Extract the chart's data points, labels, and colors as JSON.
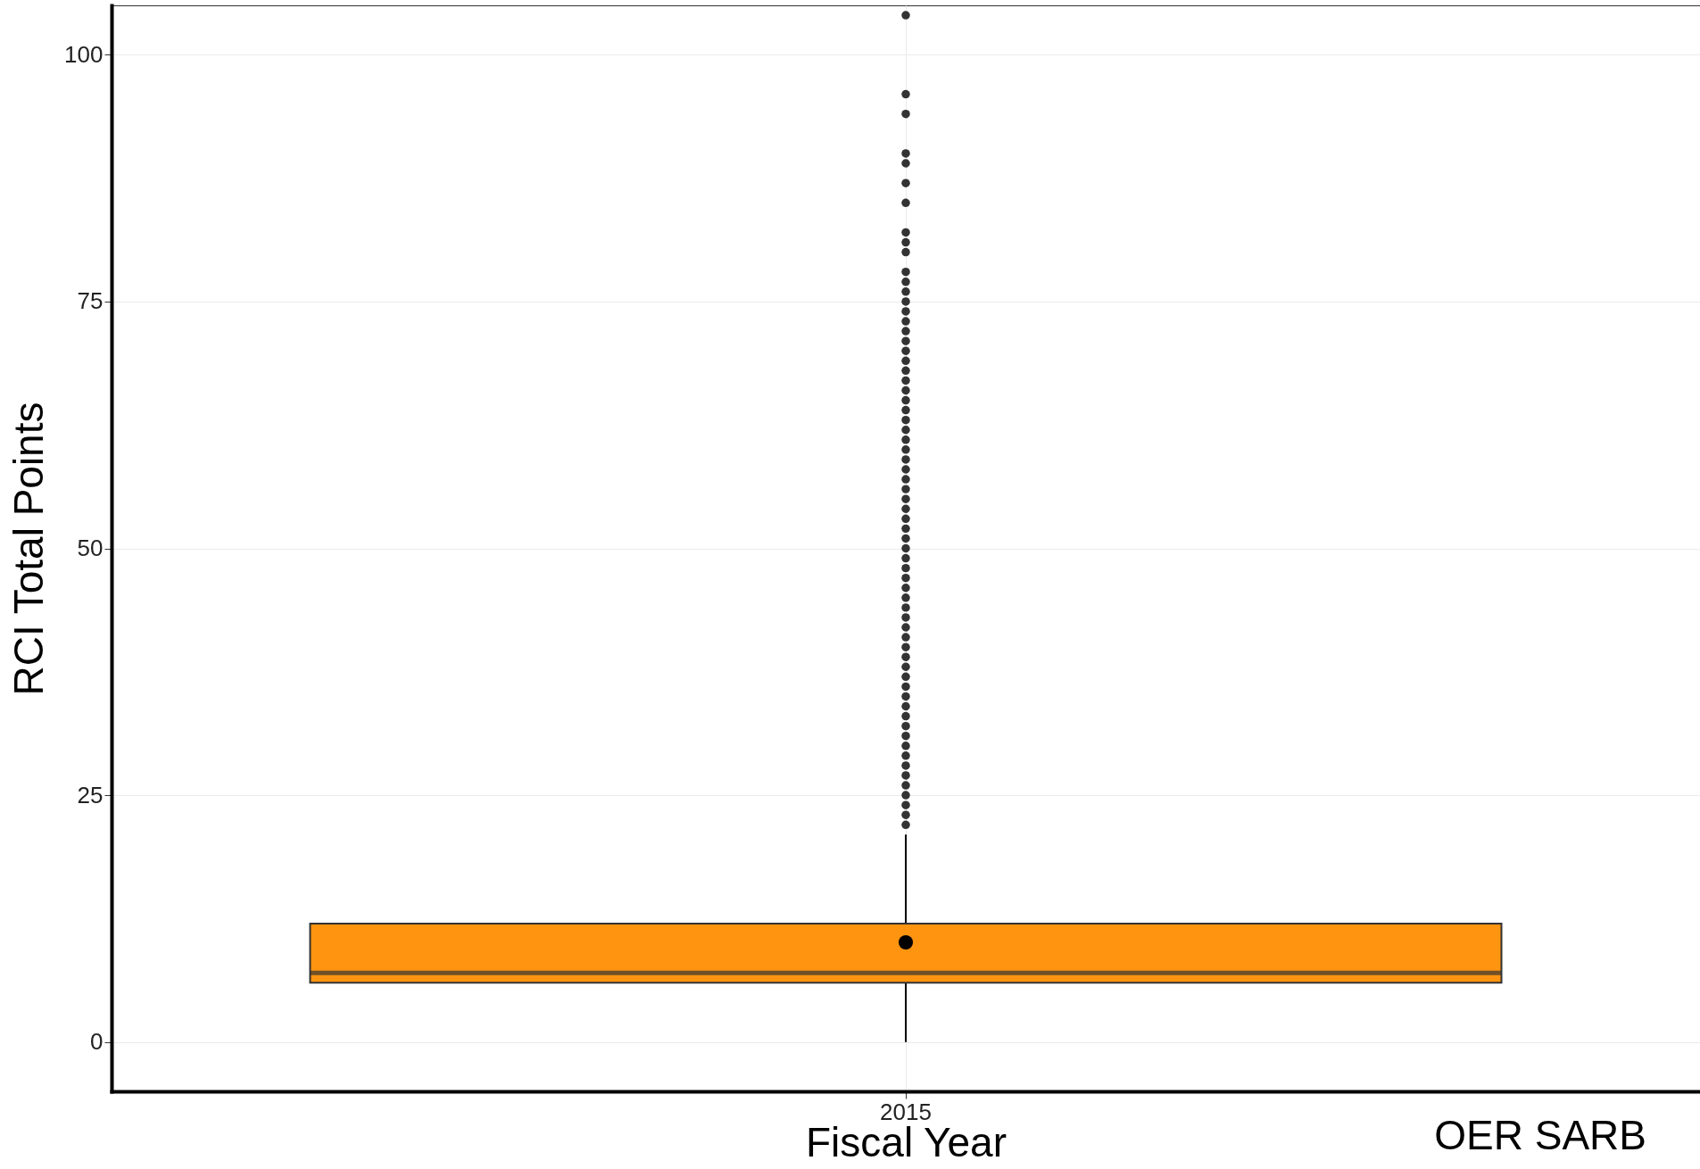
{
  "chart_data": {
    "type": "box",
    "xlabel": "Fiscal Year",
    "ylabel": "RCI Total Points",
    "categories": [
      "2015"
    ],
    "series": [
      {
        "color": "#ff9410",
        "boxes": [
          {
            "low": 0,
            "q1": 6,
            "median": 7,
            "q3": 12,
            "high": 21,
            "mean": 10.1,
            "outliers": [
              22,
              23,
              24,
              25,
              26,
              27,
              28,
              29,
              30,
              31,
              32,
              33,
              34,
              35,
              36,
              37,
              38,
              39,
              40,
              41,
              42,
              43,
              44,
              45,
              46,
              47,
              48,
              49,
              50,
              51,
              52,
              53,
              54,
              55,
              56,
              57,
              58,
              59,
              60,
              61,
              62,
              63,
              64,
              65,
              66,
              67,
              68,
              69,
              70,
              71,
              72,
              73,
              74,
              75,
              76,
              77,
              78,
              80,
              81,
              82,
              85,
              87,
              89,
              90,
              94,
              96,
              104
            ]
          }
        ]
      }
    ],
    "ylim": [
      -5,
      105
    ],
    "yticks": [
      0,
      25,
      50,
      75,
      100
    ],
    "grid": true,
    "annotations": [
      "OER SARB"
    ]
  }
}
